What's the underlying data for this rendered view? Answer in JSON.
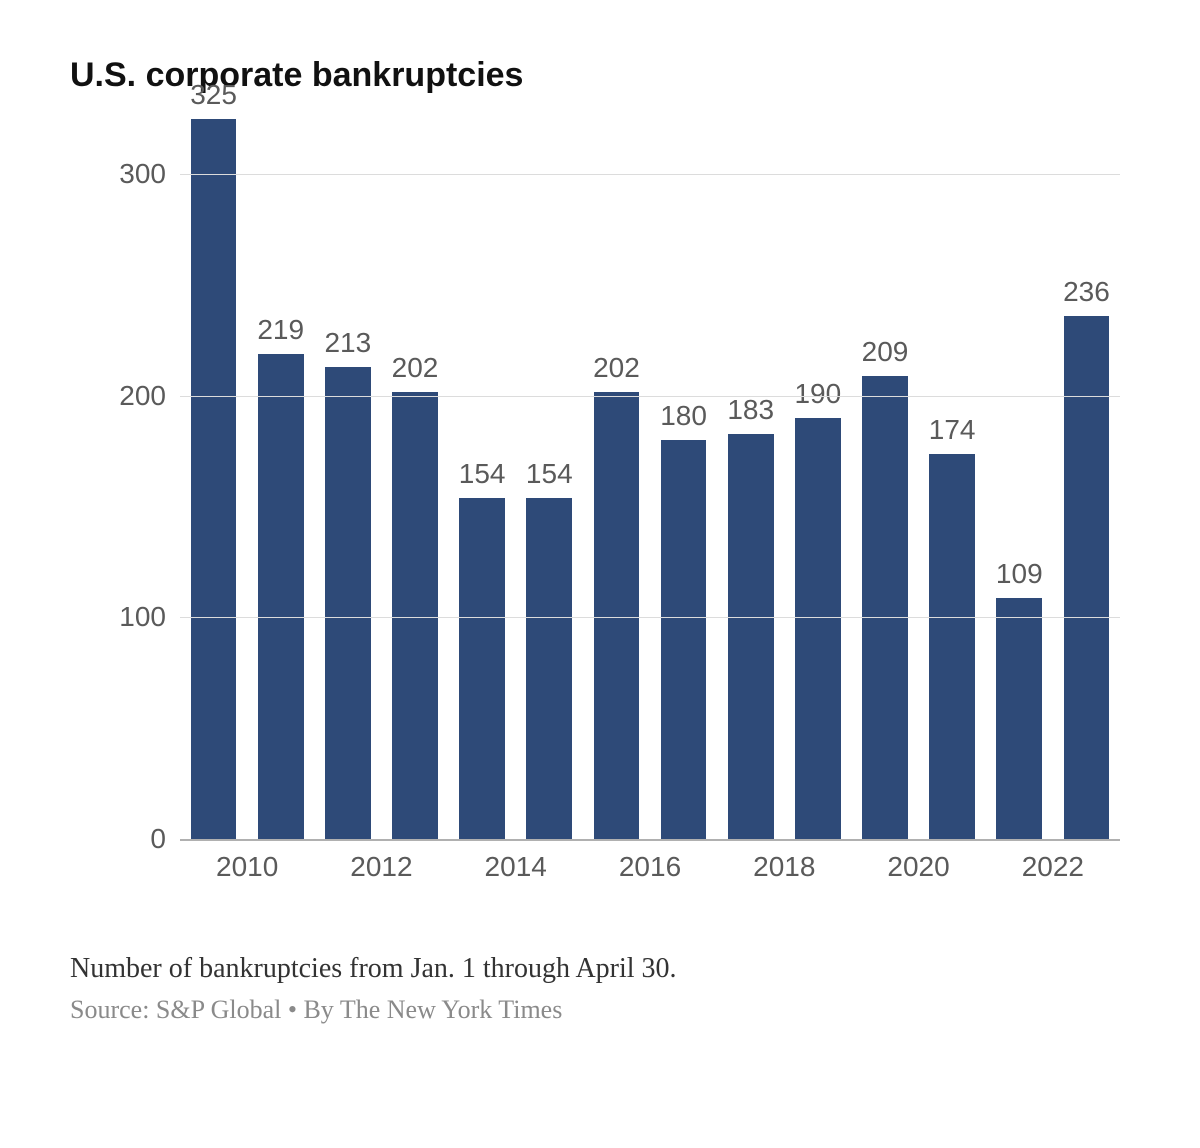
{
  "title": "U.S. corporate bankruptcies",
  "title_fontsize": 34,
  "chart": {
    "type": "bar",
    "categories": [
      "2010",
      "2011",
      "2012",
      "2013",
      "2014",
      "2015",
      "2016",
      "2017",
      "2018",
      "2019",
      "2020",
      "2021",
      "2022",
      "2023"
    ],
    "values": [
      325,
      219,
      213,
      202,
      154,
      154,
      202,
      180,
      183,
      190,
      209,
      174,
      109,
      236
    ],
    "bar_color": "#2e4a78",
    "value_label_color": "#5a5a5a",
    "value_label_fontsize": 28,
    "bar_width_ratio": 0.68,
    "y": {
      "min": 0,
      "max": 325,
      "ticks": [
        0,
        100,
        200,
        300
      ],
      "tick_labels": [
        "0",
        "100",
        "200",
        "300"
      ],
      "label_fontsize": 28,
      "label_color": "#5a5a5a"
    },
    "x": {
      "tick_labels": [
        "2010",
        "2012",
        "2014",
        "2016",
        "2018",
        "2020",
        "2022"
      ],
      "tick_category_indices": [
        0,
        2,
        4,
        6,
        8,
        10,
        12
      ],
      "label_fontsize": 28,
      "label_color": "#5a5a5a"
    },
    "gridline_color": "#dcdcdc",
    "gridline_width": 1,
    "baseline_color": "#b0b0b0",
    "baseline_width": 2,
    "background_color": "#ffffff"
  },
  "caption": "Number of bankruptcies from Jan. 1 through April 30.",
  "caption_fontsize": 28,
  "caption_color": "#333333",
  "source": "Source: S&P Global • By The New York Times",
  "source_fontsize": 26,
  "source_color": "#8a8a8a"
}
